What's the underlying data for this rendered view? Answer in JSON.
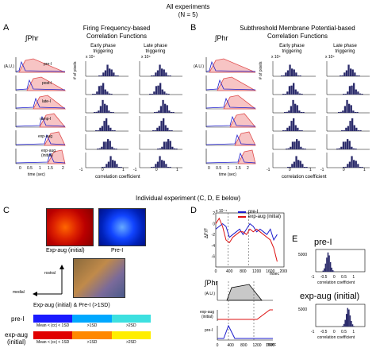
{
  "header": {
    "title": "All experiments",
    "subtitle": "(N = 5)"
  },
  "panel_a": {
    "letter": "A",
    "title_line1": "Firing Frequency-based",
    "title_line2": "Correlation Functions",
    "col_early_line1": "Early phase",
    "col_early_line2": "triggering",
    "col_late_line1": "Late phase",
    "col_late_line2": "triggering",
    "phr_label": "∫Phr",
    "au_label": "(A.U.)",
    "ylabel_pixels": "# of pixels",
    "exp_label_early": "x 10⁴",
    "exp_label_late": "x 10⁴",
    "rows": [
      "pre-I",
      "post-I",
      "late-I",
      "ramp-I",
      "exp-aug",
      "exp-aug\n(initial)"
    ],
    "row_labels": [
      "pre-I",
      "post-I",
      "late-I",
      "ramp-I",
      "exp-aug",
      "exp-aug"
    ],
    "row_label_extra": "(initial)",
    "time_axis_label": "time (sec)",
    "time_ticks": [
      "0",
      "0.5",
      "1",
      "1.5",
      "2"
    ],
    "corr_axis_label": "correlation coefficient",
    "corr_ticks": [
      "-1",
      "-0.5",
      "0",
      "0.5",
      "1"
    ],
    "trace_ticks": [
      "1",
      "0.5",
      "0",
      "0",
      "1",
      "0.5",
      "0"
    ]
  },
  "panel_b": {
    "letter": "B",
    "title_line1": "Subthreshold Membrane Potential-based",
    "title_line2": "Correlation Functions",
    "col_early_line1": "Early phase",
    "col_early_line2": "triggering",
    "col_late_line1": "Late phase",
    "col_late_line2": "triggering",
    "phr_label": "∫Phr",
    "au_label": "(A.U.)",
    "ylabel_pixels": "# of pixels",
    "exp_label_early": "x 10⁴",
    "exp_label_late": "x 10⁴",
    "time_axis_label": "time (sec)",
    "time_ticks": [
      "0",
      "0.5",
      "1",
      "1.5",
      "2"
    ],
    "corr_axis_label": "correlation coefficient",
    "corr_ticks": [
      "-1",
      "-0.5",
      "0",
      "0.5",
      "1"
    ]
  },
  "individual_header": "Individual experiment (C, D, E below)",
  "panel_c": {
    "letter": "C",
    "img1_label": "Exp-aug (initial)",
    "img2_label": "Pre-I",
    "img3_label": "Exp-aug (initial) & Pre-I (>1SD)",
    "rostral": "rostral",
    "medial": "medial",
    "legend_rows": [
      {
        "name": "pre-I",
        "cells": [
          "Mean < |cc| < 1SD",
          ">1SD",
          ">2SD"
        ]
      },
      {
        "name": "exp-aug\n(initial)",
        "cells": [
          "Mean < |cc| < 1SD",
          ">1SD",
          ">2SD"
        ]
      }
    ],
    "legend_name_1": "pre-I",
    "legend_name_2a": "exp-aug",
    "legend_name_2b": "(initial)",
    "legend_cell_1": "Mean < |cc| < 1SD",
    "legend_cell_2": ">1SD",
    "legend_cell_3": ">2SD",
    "colors": {
      "pre_i": [
        "#1a1aff",
        "#00a8ff",
        "#3de0e0"
      ],
      "exp_aug": [
        "#e00000",
        "#ff8800",
        "#ffee00"
      ]
    }
  },
  "panel_d": {
    "letter": "D",
    "legend": [
      "pre-I",
      "exp-aug (initial)"
    ],
    "exp_label": "x 10⁻⁴",
    "ylabel": "ΔF/F",
    "yticks": [
      "-6",
      "-4",
      "-2",
      "0",
      "2",
      "4"
    ],
    "xticks": [
      "0",
      "400",
      "800",
      "1200",
      "1600",
      "2000"
    ],
    "xlabel": "msec",
    "phr_label": "∫Phr",
    "au_label": "(A.U.)",
    "lower_labels": [
      "exp-aug\n(initial)",
      "pre-I"
    ],
    "lower_label_1a": "exp-aug",
    "lower_label_1b": "(initial)",
    "lower_label_2": "pre-I",
    "lower_xticks": [
      "0",
      "400",
      "800",
      "1200",
      "1600"
    ],
    "lower_xlabel": "msec",
    "series_colors": {
      "pre_i": "#1a1acc",
      "exp_aug": "#dd1111"
    }
  },
  "panel_e": {
    "letter": "E",
    "plots": [
      {
        "title": "pre-I",
        "ytick": "5000",
        "xticks": [
          "-1",
          "-0.5",
          "0",
          "0.5",
          "1"
        ],
        "xlabel": "correlation coefficient"
      },
      {
        "title": "exp-aug (initial)",
        "ytick": "5000",
        "xticks": [
          "-1",
          "-0.5",
          "0",
          "0.5",
          "1"
        ],
        "xlabel": "correlation coefficient"
      }
    ],
    "title_1": "pre-I",
    "title_2": "exp-aug (initial)",
    "ytick": "5000",
    "xlabel": "correlation coefficient"
  },
  "chart_data": [
    {
      "type": "bar",
      "title": "Panel E pre-I",
      "xlabel": "correlation coefficient",
      "ylabel": "",
      "categories": [
        "-0.7",
        "-0.65",
        "-0.6",
        "-0.55",
        "-0.5",
        "-0.45",
        "-0.4",
        "-0.35",
        "-0.3",
        "-0.25"
      ],
      "values": [
        300,
        900,
        2200,
        3800,
        5200,
        4400,
        2600,
        1100,
        400,
        100
      ],
      "xlim": [
        -1,
        1
      ]
    },
    {
      "type": "bar",
      "title": "Panel E exp-aug (initial)",
      "xlabel": "correlation coefficient",
      "ylabel": "",
      "categories": [
        "0.1",
        "0.15",
        "0.2",
        "0.25",
        "0.3",
        "0.35",
        "0.4",
        "0.45",
        "0.5",
        "0.55"
      ],
      "values": [
        200,
        700,
        1800,
        3400,
        5000,
        4600,
        3000,
        1500,
        600,
        150
      ],
      "xlim": [
        -1,
        1
      ]
    },
    {
      "type": "line",
      "title": "Panel D",
      "xlabel": "msec",
      "ylabel": "ΔF/F",
      "ylim": [
        -6,
        4
      ],
      "xlim": [
        0,
        2000
      ],
      "series": [
        {
          "name": "pre-I",
          "x": [
            0,
            100,
            200,
            300,
            400,
            500,
            600,
            700,
            800,
            900,
            1000,
            1100,
            1200,
            1300,
            1400,
            1500,
            1600,
            1700,
            1800
          ],
          "values": [
            1,
            1.5,
            2,
            1.5,
            -0.5,
            0,
            0.5,
            1,
            0,
            1,
            2,
            1.5,
            0.5,
            1,
            0.5,
            0,
            1,
            -1,
            0
          ]
        },
        {
          "name": "exp-aug (initial)",
          "x": [
            0,
            100,
            200,
            300,
            400,
            500,
            600,
            700,
            800,
            900,
            1000,
            1100,
            1200,
            1300,
            1400,
            1500,
            1600,
            1700,
            1800
          ],
          "values": [
            2,
            3,
            1.5,
            -1,
            -1.5,
            -0.5,
            0,
            0.5,
            0.5,
            0,
            1,
            0.5,
            1,
            0.5,
            0,
            -0.5,
            -1,
            -2.5,
            -5
          ]
        }
      ]
    }
  ]
}
